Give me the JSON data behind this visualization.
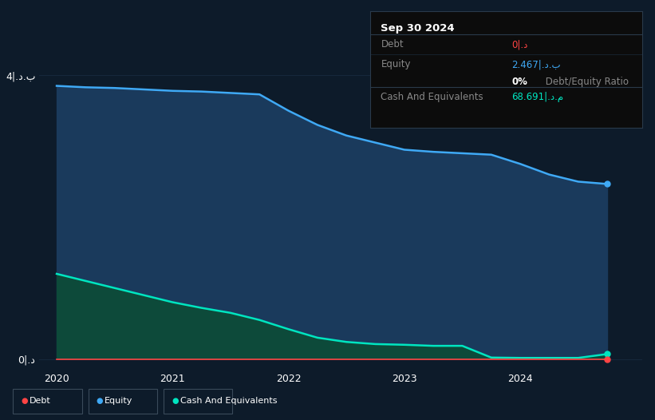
{
  "background_color": "#0d1b2a",
  "plot_bg_color": "#0d1b2a",
  "years_equity": [
    2020.0,
    2020.25,
    2020.5,
    2020.75,
    2021.0,
    2021.25,
    2021.5,
    2021.75,
    2022.0,
    2022.25,
    2022.5,
    2022.75,
    2023.0,
    2023.25,
    2023.5,
    2023.75,
    2024.0,
    2024.25,
    2024.5,
    2024.75
  ],
  "equity_values": [
    3.85,
    3.83,
    3.82,
    3.8,
    3.78,
    3.77,
    3.75,
    3.73,
    3.5,
    3.3,
    3.15,
    3.05,
    2.95,
    2.92,
    2.9,
    2.88,
    2.75,
    2.6,
    2.5,
    2.467
  ],
  "cash_values": [
    1.2,
    1.1,
    1.0,
    0.9,
    0.8,
    0.72,
    0.65,
    0.55,
    0.42,
    0.3,
    0.24,
    0.21,
    0.2,
    0.185,
    0.185,
    0.02,
    0.015,
    0.015,
    0.015,
    0.069
  ],
  "debt_values": [
    0.0,
    0.0,
    0.0,
    0.0,
    0.0,
    0.0,
    0.0,
    0.0,
    0.0,
    0.0,
    0.0,
    0.0,
    0.0,
    0.0,
    0.0,
    0.0,
    0.0,
    0.0,
    0.0,
    0.0
  ],
  "equity_line_color": "#3fa9f5",
  "equity_fill_color": "#1a3a5c",
  "cash_line_color": "#00e5c0",
  "cash_fill_color": "#0d4a3a",
  "debt_line_color": "#ff4444",
  "ylim_top": 4.35,
  "ylim_bottom": -0.15,
  "ytick_labels": [
    "0|.د",
    "4|.د.ب"
  ],
  "ytick_values": [
    0,
    4
  ],
  "xtick_labels": [
    "2020",
    "2021",
    "2022",
    "2023",
    "2024"
  ],
  "xtick_values": [
    2020,
    2021,
    2022,
    2023,
    2024
  ],
  "legend_items": [
    {
      "label": "Debt",
      "color": "#ff4444"
    },
    {
      "label": "Equity",
      "color": "#3fa9f5"
    },
    {
      "label": "Cash And Equivalents",
      "color": "#00e5c0"
    }
  ],
  "tooltip_title": "Sep 30 2024",
  "grid_color": "#1e3048",
  "grid_alpha": 0.6,
  "marker_size": 5
}
